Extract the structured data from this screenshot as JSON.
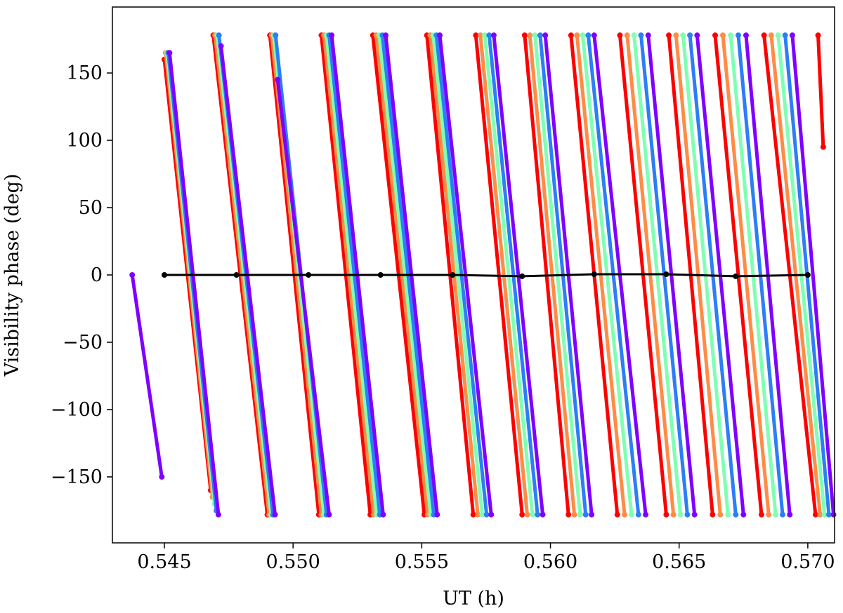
{
  "chart_data": {
    "type": "line",
    "xlabel": "UT (h)",
    "ylabel": "Visibility phase (deg)",
    "xlim": [
      0.54298,
      0.57104
    ],
    "ylim": [
      -199,
      199
    ],
    "xticks": [
      0.545,
      {
        "value": 0.55,
        "label": "0.550"
      },
      0.555,
      {
        "value": 0.56,
        "label": "0.560"
      },
      0.565,
      {
        "value": 0.57,
        "label": "0.570"
      }
    ],
    "yticks": [
      {
        "value": -150,
        "label": "−150"
      },
      {
        "value": -100,
        "label": "−100"
      },
      {
        "value": -50,
        "label": "−50"
      },
      0,
      50,
      100,
      150
    ],
    "series": [
      {
        "color": "#ff0000",
        "x": [
          0.545,
          0.5468,
          null,
          0.5469,
          0.549,
          null,
          0.5491,
          0.551,
          null,
          0.5511,
          0.553,
          null,
          0.5531,
          0.5551,
          null,
          0.5552,
          0.557,
          null,
          0.5571,
          0.5589,
          null,
          0.559,
          0.5607,
          null,
          0.5608,
          0.5626,
          null,
          0.5627,
          0.5645,
          null,
          0.5646,
          0.5663,
          null,
          0.5664,
          0.5682,
          null,
          0.5683,
          0.5703,
          null,
          0.5704,
          0.5706
        ],
        "values": [
          160,
          -160,
          null,
          178,
          -178,
          null,
          178,
          -178,
          null,
          178,
          -178,
          null,
          178,
          -178,
          null,
          178,
          -178,
          null,
          178,
          -178,
          null,
          178,
          -178,
          null,
          178,
          -178,
          null,
          178,
          -178,
          null,
          178,
          -178,
          null,
          178,
          -178,
          null,
          178,
          -178,
          null,
          178,
          95
        ]
      },
      {
        "color": "#ff8c46",
        "x": [
          0.54505,
          0.54687,
          null,
          0.54697,
          0.54907,
          null,
          0.54917,
          0.5511,
          null,
          0.5512,
          0.55313,
          null,
          0.55323,
          0.55523,
          null,
          0.55533,
          0.55718,
          null,
          0.55728,
          0.5591,
          null,
          0.5592,
          0.56093,
          null,
          0.56103,
          0.56288,
          null,
          0.56298,
          0.56478,
          null,
          0.56488,
          0.5666,
          null,
          0.5667,
          0.56848,
          null,
          0.56858,
          0.57048
        ],
        "values": [
          165,
          -165,
          null,
          178,
          -178,
          null,
          178,
          -178,
          null,
          178,
          -178,
          null,
          178,
          -178,
          null,
          178,
          -178,
          null,
          178,
          -178,
          null,
          178,
          -178,
          null,
          178,
          -178,
          null,
          178,
          -178,
          null,
          178,
          -178,
          null,
          178,
          -178,
          null,
          178,
          -178
        ]
      },
      {
        "color": "#80ffb4",
        "x": [
          0.5451,
          0.54695,
          null,
          0.54705,
          0.54915,
          null,
          0.54925,
          0.5512,
          null,
          0.5513,
          0.55325,
          null,
          0.55335,
          0.55535,
          null,
          0.55545,
          0.55735,
          null,
          0.55745,
          0.5593,
          null,
          0.5594,
          0.56115,
          null,
          0.56125,
          0.56315,
          null,
          0.56325,
          0.56505,
          null,
          0.56515,
          0.5669,
          null,
          0.567,
          0.56875,
          null,
          0.56885,
          0.57065
        ],
        "values": [
          165,
          -170,
          null,
          178,
          -178,
          null,
          178,
          -178,
          null,
          178,
          -178,
          null,
          178,
          -178,
          null,
          178,
          -178,
          null,
          178,
          -178,
          null,
          178,
          -178,
          null,
          178,
          -178,
          null,
          178,
          -178,
          null,
          178,
          -178,
          null,
          178,
          -178,
          null,
          178,
          -178
        ]
      },
      {
        "color": "#2c7ef7",
        "x": [
          0.54515,
          0.54702,
          null,
          0.54712,
          0.54922,
          null,
          0.54932,
          0.5513,
          null,
          0.5514,
          0.55337,
          null,
          0.55347,
          0.55547,
          null,
          0.55557,
          0.55752,
          null,
          0.55762,
          0.5595,
          null,
          0.5596,
          0.56137,
          null,
          0.56147,
          0.56342,
          null,
          0.56352,
          0.56532,
          null,
          0.56542,
          0.5672,
          null,
          0.5673,
          0.56902,
          null,
          0.56912,
          0.57082
        ],
        "values": [
          165,
          -175,
          null,
          178,
          -178,
          null,
          178,
          -178,
          null,
          178,
          -178,
          null,
          178,
          -178,
          null,
          178,
          -178,
          null,
          178,
          -178,
          null,
          178,
          -178,
          null,
          178,
          -178,
          null,
          178,
          -178,
          null,
          178,
          -178,
          null,
          178,
          -178,
          null,
          178,
          -178
        ]
      },
      {
        "color": "#8000ff",
        "x": [
          0.54375,
          0.5449,
          null,
          0.5452,
          0.5471,
          null,
          0.5472,
          0.5493,
          null,
          0.5494,
          0.5514,
          null,
          0.5515,
          0.5535,
          null,
          0.5536,
          0.5556,
          null,
          0.5557,
          0.5577,
          null,
          0.5578,
          0.5597,
          null,
          0.5598,
          0.5616,
          null,
          0.5617,
          0.5637,
          null,
          0.5638,
          0.5656,
          null,
          0.5657,
          0.5675,
          null,
          0.5676,
          0.5693,
          null,
          0.5694,
          0.571
        ],
        "values": [
          0,
          -150,
          null,
          165,
          -178,
          null,
          170,
          -178,
          null,
          145,
          -178,
          null,
          178,
          -178,
          null,
          178,
          -178,
          null,
          178,
          -178,
          null,
          178,
          -178,
          null,
          178,
          -178,
          null,
          178,
          -178,
          null,
          178,
          -178,
          null,
          178,
          -178,
          null,
          178,
          -178,
          null,
          178,
          -178
        ]
      },
      {
        "color": "#000000",
        "x": [
          0.545,
          0.5478,
          0.5506,
          0.5534,
          0.5562,
          0.5589,
          0.5617,
          0.5645,
          0.5672,
          0.57
        ],
        "values": [
          0,
          0,
          0,
          0,
          0,
          -1,
          0.5,
          0.5,
          -1,
          0
        ]
      }
    ]
  }
}
